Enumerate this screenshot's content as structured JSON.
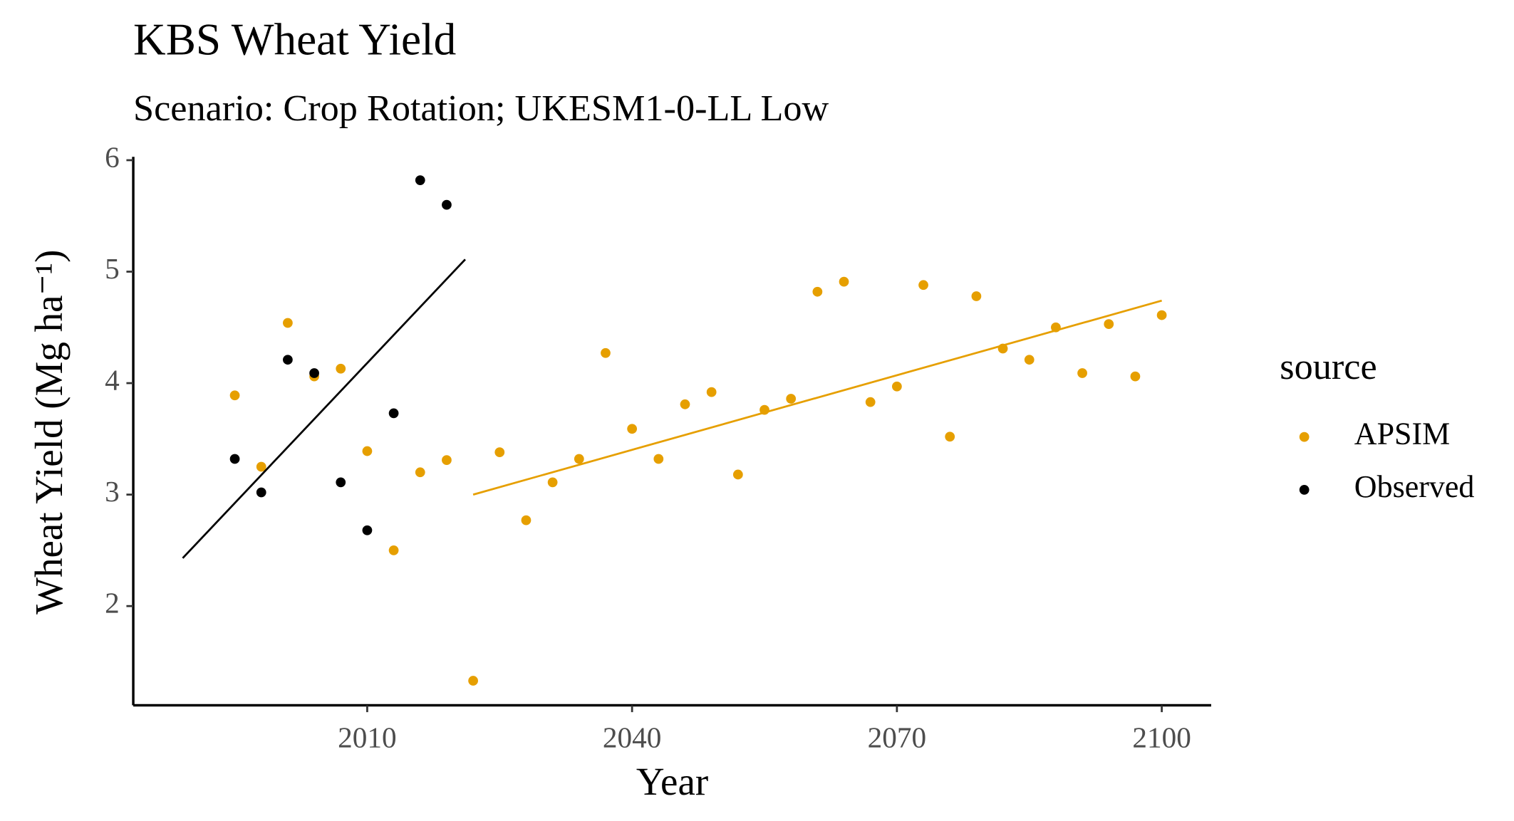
{
  "chart_data": {
    "type": "scatter",
    "title": "KBS Wheat Yield",
    "subtitle": "Scenario: Crop Rotation; UKESM1-0-LL Low",
    "x_label": "Year",
    "y_label": "Wheat Yield (Mg ha⁻¹)",
    "legend_title": "source",
    "xlim": [
      1983.5,
      2105.6
    ],
    "ylim": [
      1.11,
      6.03
    ],
    "xticks": [
      2010,
      2040,
      2070,
      2100
    ],
    "yticks": [
      2,
      3,
      4,
      5,
      6
    ],
    "grid": false,
    "series": [
      {
        "name": "APSIM",
        "color": "#e69f00",
        "x": [
          1995,
          1998,
          2001,
          2004,
          2007,
          2010,
          2013,
          2016,
          2019,
          2022,
          2025,
          2028,
          2031,
          2034,
          2037,
          2040,
          2043,
          2046,
          2049,
          2052,
          2055,
          2058,
          2061,
          2064,
          2067,
          2070,
          2073,
          2076,
          2079,
          2082,
          2085,
          2088,
          2091,
          2094,
          2097,
          2100
        ],
        "values": [
          3.89,
          3.25,
          4.54,
          4.06,
          4.13,
          3.39,
          2.5,
          3.2,
          3.31,
          1.33,
          3.38,
          2.77,
          3.11,
          3.32,
          4.27,
          3.59,
          3.32,
          3.81,
          3.92,
          3.18,
          3.76,
          3.86,
          4.82,
          4.91,
          3.83,
          3.97,
          4.88,
          3.52,
          4.78,
          4.31,
          4.21,
          4.5,
          4.09,
          4.53,
          4.06,
          4.61
        ],
        "trend": {
          "x": [
            2022,
            2100
          ],
          "values": [
            3.0,
            4.74
          ]
        }
      },
      {
        "name": "Observed",
        "color": "#000000",
        "x": [
          1995,
          1998,
          2001,
          2004,
          2007,
          2010,
          2013,
          2016,
          2019
        ],
        "values": [
          3.32,
          3.02,
          4.21,
          4.09,
          3.11,
          2.68,
          3.73,
          5.82,
          5.6
        ],
        "trend": {
          "x": [
            1989.1,
            2021.1
          ],
          "values": [
            2.43,
            5.11
          ]
        }
      }
    ]
  }
}
